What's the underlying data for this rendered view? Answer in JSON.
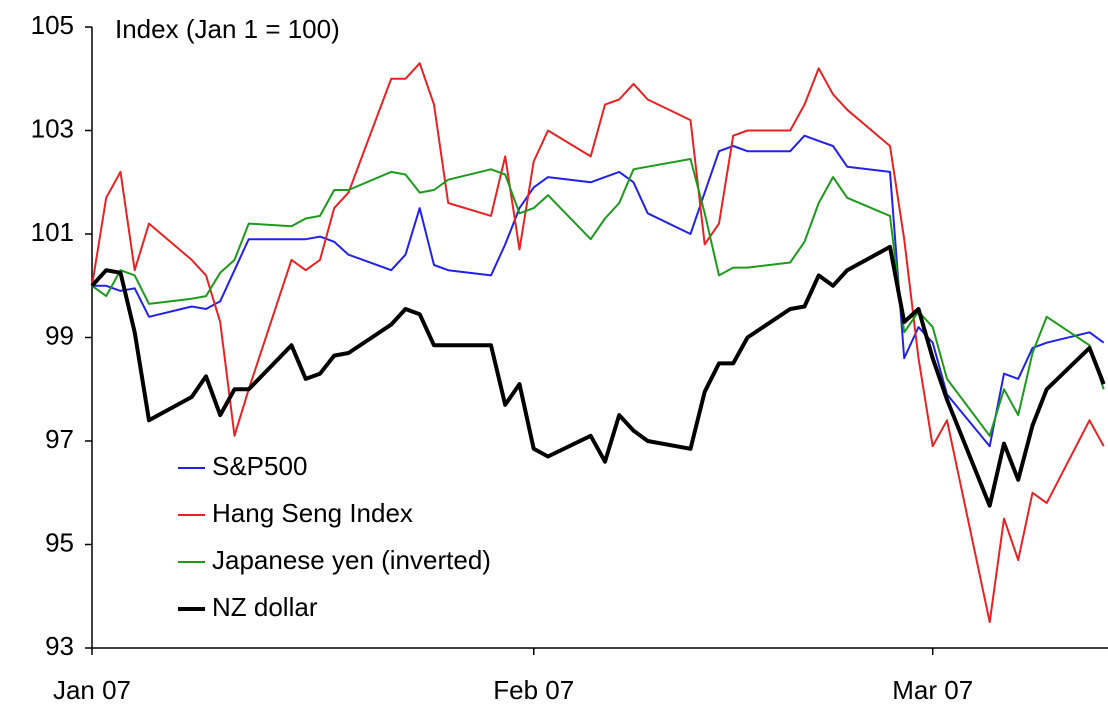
{
  "chart_data": {
    "type": "line",
    "annotation": "Index (Jan 1 = 100)",
    "x": [
      0,
      1,
      2,
      3,
      4,
      7,
      8,
      9,
      10,
      11,
      14,
      15,
      16,
      17,
      18,
      21,
      22,
      23,
      24,
      25,
      28,
      29,
      30,
      31,
      32,
      35,
      36,
      37,
      38,
      39,
      42,
      43,
      44,
      45,
      46,
      49,
      50,
      51,
      52,
      53,
      56,
      57,
      58,
      59,
      60,
      63,
      64,
      65,
      66,
      67,
      70,
      71
    ],
    "xlim": [
      0,
      71.3
    ],
    "xticks": [
      {
        "value": 0,
        "label": "Jan 07"
      },
      {
        "value": 31,
        "label": "Feb 07"
      },
      {
        "value": 59,
        "label": "Mar 07"
      }
    ],
    "ylim": [
      93,
      105
    ],
    "yticks": [
      93,
      95,
      97,
      99,
      101,
      103,
      105
    ],
    "grid": false,
    "legend_position": "lower-left",
    "series": [
      {
        "name": "S&P500",
        "color": "#2222e6",
        "width": 2,
        "values": [
          100,
          100,
          99.9,
          99.95,
          99.4,
          99.6,
          99.55,
          99.7,
          100.3,
          100.9,
          100.9,
          100.9,
          100.95,
          100.85,
          100.6,
          100.3,
          100.6,
          101.5,
          100.4,
          100.3,
          100.2,
          100.8,
          101.5,
          101.9,
          102.1,
          102.0,
          102.1,
          102.2,
          102.0,
          101.4,
          101.0,
          101.8,
          102.6,
          102.7,
          102.6,
          102.6,
          102.9,
          102.8,
          102.7,
          102.3,
          102.2,
          98.6,
          99.2,
          98.9,
          97.9,
          96.9,
          98.3,
          98.2,
          98.8,
          98.9,
          99.1,
          98.9
        ]
      },
      {
        "name": "Hang Seng Index",
        "color": "#e82222",
        "width": 2,
        "values": [
          100,
          101.7,
          102.2,
          100.3,
          101.2,
          100.5,
          100.2,
          99.3,
          97.1,
          98.0,
          100.5,
          100.3,
          100.5,
          101.5,
          101.8,
          104.0,
          104.0,
          104.3,
          103.5,
          101.6,
          101.35,
          102.5,
          100.7,
          102.4,
          103.0,
          102.5,
          103.5,
          103.6,
          103.9,
          103.6,
          103.2,
          100.8,
          101.2,
          102.9,
          103.0,
          103.0,
          103.5,
          104.2,
          103.7,
          103.4,
          102.7,
          100.9,
          98.6,
          96.9,
          97.4,
          93.5,
          95.5,
          94.7,
          96.0,
          95.8,
          97.4,
          96.9
        ]
      },
      {
        "name": "Japanese yen (inverted)",
        "color": "#1c9a1c",
        "width": 2,
        "values": [
          100,
          99.8,
          100.3,
          100.2,
          99.65,
          99.75,
          99.8,
          100.25,
          100.5,
          101.2,
          101.15,
          101.3,
          101.35,
          101.85,
          101.85,
          102.2,
          102.15,
          101.8,
          101.85,
          102.05,
          102.25,
          102.15,
          101.4,
          101.5,
          101.75,
          100.9,
          101.3,
          101.6,
          102.25,
          102.3,
          102.45,
          101.4,
          100.2,
          100.35,
          100.35,
          100.45,
          100.85,
          101.6,
          102.1,
          101.7,
          101.35,
          99.1,
          99.5,
          99.2,
          98.2,
          97.1,
          98.0,
          97.5,
          98.7,
          99.4,
          98.85,
          98.0
        ]
      },
      {
        "name": "NZ dollar",
        "color": "#000000",
        "width": 4,
        "values": [
          100,
          100.3,
          100.25,
          99.1,
          97.4,
          97.85,
          98.25,
          97.5,
          98.0,
          98.0,
          98.85,
          98.2,
          98.3,
          98.65,
          98.7,
          99.25,
          99.55,
          99.45,
          98.85,
          98.85,
          98.85,
          97.7,
          98.1,
          96.85,
          96.7,
          97.1,
          96.6,
          97.5,
          97.2,
          97.0,
          96.85,
          97.95,
          98.5,
          98.5,
          99.0,
          99.55,
          99.6,
          100.2,
          100.0,
          100.3,
          100.75,
          99.3,
          99.55,
          98.6,
          97.8,
          95.75,
          96.95,
          96.25,
          97.3,
          98.0,
          98.8,
          98.1
        ]
      }
    ]
  }
}
